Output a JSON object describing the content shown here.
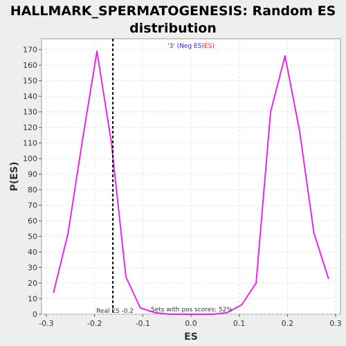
{
  "chart_data": {
    "type": "line",
    "title_line1": "HALLMARK_SPERMATOGENESIS: Random ES",
    "title_line2": "distribution",
    "xlabel": "ES",
    "ylabel": "P(ES)",
    "xlim": [
      -0.31,
      0.31
    ],
    "ylim": [
      0,
      177
    ],
    "x_ticks": [
      "-0.3",
      "-0.2",
      "-0.1",
      "0.0",
      "0.1",
      "0.2",
      "0.3"
    ],
    "x_tick_values": [
      -0.3,
      -0.2,
      -0.1,
      0.0,
      0.1,
      0.2,
      0.3
    ],
    "y_ticks": [
      "0",
      "10",
      "20",
      "30",
      "40",
      "50",
      "60",
      "70",
      "80",
      "90",
      "100",
      "110",
      "120",
      "130",
      "140",
      "150",
      "160",
      "170"
    ],
    "y_tick_values": [
      0,
      10,
      20,
      30,
      40,
      50,
      60,
      70,
      80,
      90,
      100,
      110,
      120,
      130,
      140,
      150,
      160,
      170
    ],
    "grid": true,
    "legend_parts": [
      {
        "text": "'3' (Neg ES)",
        "color": "#2222ee"
      },
      {
        "text": "ES)",
        "color": "#ee2222"
      }
    ],
    "series": [
      {
        "color": "#ee22ee",
        "x": [
          -0.285,
          -0.255,
          -0.225,
          -0.195,
          -0.165,
          -0.135,
          -0.105,
          -0.075,
          -0.045,
          -0.015,
          0.015,
          0.045,
          0.075,
          0.105,
          0.135,
          0.165,
          0.195,
          0.225,
          0.255,
          0.285
        ],
        "y": [
          14,
          52,
          112,
          169,
          110,
          24,
          4,
          1,
          0,
          0,
          0,
          0,
          1,
          6,
          20,
          130,
          166,
          118,
          52,
          23
        ]
      }
    ],
    "real_es": -0.162,
    "real_es_label": "Real ES -0.2",
    "pos_scores_label": "Sets with pos scores: 52%"
  }
}
